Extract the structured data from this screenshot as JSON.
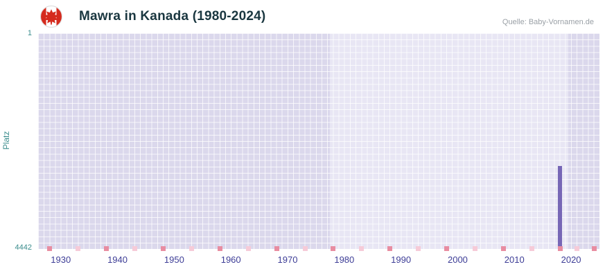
{
  "header": {
    "title": "Mawra in Kanada (1980-2024)",
    "source": "Quelle: Baby-Vornamen.de",
    "flag_icon": "canada-flag"
  },
  "chart_data": {
    "type": "bar",
    "title": "Mawra in Kanada (1980-2024)",
    "xlabel": "",
    "ylabel": "Platz",
    "xlim": [
      1926,
      2025
    ],
    "ylim": [
      1,
      4442
    ],
    "y_axis_inverted": true,
    "grid": true,
    "legend": false,
    "x_ticks": [
      1930,
      1940,
      1950,
      1960,
      1970,
      1980,
      1990,
      2000,
      2010,
      2020
    ],
    "y_axis": {
      "top_label": "1",
      "bottom_label": "4442",
      "title": "Platz"
    },
    "series": [
      {
        "name": "Mawra",
        "points": [
          {
            "year": 2018,
            "rank": 2734
          }
        ]
      }
    ],
    "regions": [
      {
        "from": 1926,
        "to": 1977.5,
        "shade": "dark"
      },
      {
        "from": 1977.5,
        "to": 2019.5,
        "shade": "light"
      },
      {
        "from": 2019.5,
        "to": 2025,
        "shade": "dark"
      }
    ],
    "bottom_markers": [
      {
        "year": 1928,
        "shade": "dark"
      },
      {
        "year": 1933,
        "shade": "light"
      },
      {
        "year": 1938,
        "shade": "dark"
      },
      {
        "year": 1943,
        "shade": "light"
      },
      {
        "year": 1948,
        "shade": "dark"
      },
      {
        "year": 1953,
        "shade": "light"
      },
      {
        "year": 1958,
        "shade": "dark"
      },
      {
        "year": 1963,
        "shade": "light"
      },
      {
        "year": 1968,
        "shade": "dark"
      },
      {
        "year": 1973,
        "shade": "light"
      },
      {
        "year": 1978,
        "shade": "dark"
      },
      {
        "year": 1983,
        "shade": "light"
      },
      {
        "year": 1988,
        "shade": "dark"
      },
      {
        "year": 1993,
        "shade": "light"
      },
      {
        "year": 1998,
        "shade": "dark"
      },
      {
        "year": 2003,
        "shade": "light"
      },
      {
        "year": 2008,
        "shade": "dark"
      },
      {
        "year": 2013,
        "shade": "light"
      },
      {
        "year": 2018,
        "shade": "dark"
      },
      {
        "year": 2021,
        "shade": "light"
      },
      {
        "year": 2024,
        "shade": "dark"
      }
    ],
    "colors": {
      "bar": "#7767b6",
      "band_dark": "#dbd8ec",
      "band_light": "#e8e6f4",
      "marker_dark": "#e88da1",
      "marker_light": "#f6cbd8",
      "x_tick_text": "#3c3c96",
      "y_tick_text": "#3b8d8d",
      "title_text": "#1a3740",
      "source_text": "#9aa0a6"
    }
  }
}
